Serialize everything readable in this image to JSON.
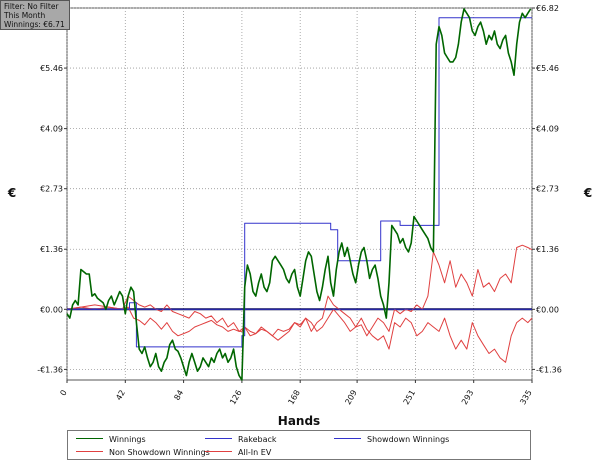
{
  "info": {
    "filter": "Filter: No Filter",
    "period": "This Month",
    "winnings": "Winnings: €6.71"
  },
  "chart_data": {
    "type": "line",
    "xlabel": "Hands",
    "ylabel": "€",
    "xlim": [
      0,
      335
    ],
    "ylim": [
      -1.6,
      6.82
    ],
    "x_ticks": [
      0,
      42,
      84,
      126,
      168,
      209,
      251,
      293,
      335
    ],
    "y_ticks": [
      -1.36,
      0.0,
      1.36,
      2.73,
      4.09,
      5.46,
      6.82
    ],
    "y_tick_labels": [
      "-€1.36",
      "€0.00",
      "€1.36",
      "€2.73",
      "€4.09",
      "€5.46",
      "€6.82"
    ],
    "grid": true,
    "legend_position": "bottom",
    "colors": {
      "winnings": "#006600",
      "rakeback": "#3333cc",
      "showdown": "#3333cc",
      "nonshowdown": "#e04040",
      "allin": "#e04040",
      "zero": "#000033"
    },
    "series": [
      {
        "name": "Winnings",
        "key": "winnings",
        "x": [
          0,
          2,
          4,
          6,
          8,
          10,
          12,
          14,
          16,
          18,
          20,
          22,
          24,
          26,
          28,
          30,
          32,
          34,
          36,
          38,
          40,
          42,
          44,
          46,
          48,
          50,
          52,
          54,
          56,
          58,
          60,
          62,
          64,
          66,
          68,
          70,
          72,
          74,
          76,
          78,
          80,
          82,
          84,
          86,
          88,
          90,
          92,
          94,
          96,
          98,
          100,
          102,
          104,
          106,
          108,
          110,
          112,
          114,
          116,
          118,
          120,
          122,
          124,
          126,
          128,
          130,
          132,
          134,
          136,
          138,
          140,
          142,
          144,
          146,
          148,
          150,
          152,
          154,
          156,
          158,
          160,
          162,
          164,
          166,
          168,
          170,
          172,
          174,
          176,
          178,
          180,
          182,
          184,
          186,
          188,
          190,
          192,
          194,
          196,
          198,
          200,
          202,
          204,
          206,
          208,
          210,
          212,
          214,
          216,
          218,
          220,
          222,
          224,
          226,
          228,
          230,
          232,
          234,
          236,
          238,
          240,
          242,
          244,
          246,
          248,
          250,
          252,
          254,
          256,
          258,
          260,
          262,
          264,
          266,
          268,
          270,
          272,
          274,
          276,
          278,
          280,
          282,
          284,
          286,
          288,
          290,
          292,
          294,
          296,
          298,
          300,
          302,
          304,
          306,
          308,
          310,
          312,
          314,
          316,
          318,
          320,
          322,
          324,
          326,
          328,
          330,
          332,
          334
        ],
        "values": [
          -0.1,
          -0.2,
          0.1,
          0.2,
          0.1,
          0.9,
          0.85,
          0.8,
          0.8,
          0.3,
          0.35,
          0.25,
          0.2,
          0.15,
          0.0,
          0.2,
          0.3,
          0.1,
          0.25,
          0.4,
          0.3,
          -0.1,
          0.3,
          0.5,
          0.4,
          -0.3,
          -0.9,
          -1.0,
          -0.85,
          -1.1,
          -1.3,
          -1.2,
          -1.0,
          -1.3,
          -1.4,
          -1.2,
          -1.1,
          -0.8,
          -0.7,
          -0.9,
          -0.95,
          -1.1,
          -1.3,
          -1.5,
          -1.2,
          -1.0,
          -1.2,
          -1.4,
          -1.3,
          -1.1,
          -1.2,
          -1.3,
          -1.1,
          -1.2,
          -1.0,
          -0.9,
          -1.1,
          -1.0,
          -1.2,
          -1.1,
          -0.9,
          -1.3,
          -1.5,
          -1.6,
          0.5,
          1.0,
          0.8,
          0.4,
          0.3,
          0.6,
          0.8,
          0.5,
          0.4,
          0.6,
          1.1,
          1.2,
          1.1,
          1.0,
          0.9,
          0.7,
          0.6,
          0.8,
          0.9,
          0.5,
          0.3,
          0.7,
          1.1,
          1.3,
          1.2,
          0.8,
          0.4,
          0.2,
          0.5,
          0.9,
          1.2,
          0.6,
          0.3,
          0.9,
          1.3,
          1.5,
          1.2,
          1.4,
          1.1,
          0.8,
          0.6,
          1.0,
          1.3,
          1.4,
          1.1,
          0.7,
          0.9,
          1.0,
          0.7,
          0.3,
          0.1,
          -0.2,
          0.6,
          1.9,
          1.8,
          1.7,
          1.5,
          1.6,
          1.4,
          1.3,
          1.5,
          2.1,
          2.0,
          1.9,
          1.8,
          1.7,
          1.6,
          1.4,
          1.3,
          6.0,
          6.4,
          6.2,
          5.8,
          5.7,
          5.6,
          5.6,
          5.7,
          6.0,
          6.5,
          6.8,
          6.7,
          6.6,
          6.3,
          6.2,
          6.4,
          6.5,
          6.3,
          6.0,
          6.2,
          6.1,
          6.3,
          6.0,
          5.9,
          6.1,
          6.2,
          5.8,
          5.6,
          5.3,
          6.0,
          6.5,
          6.7,
          6.6,
          6.7,
          6.8
        ],
        "values_note": ""
      },
      {
        "name": "Rakeback",
        "key": "rakeback",
        "x": [
          0,
          45,
          45,
          50,
          50,
          126,
          126,
          128,
          128,
          190,
          190,
          195,
          195,
          226,
          226,
          240,
          240,
          252,
          252,
          268,
          268,
          335
        ],
        "values": [
          0.0,
          0.0,
          0.15,
          0.15,
          -0.85,
          -0.85,
          -0.6,
          -0.6,
          1.95,
          1.95,
          1.8,
          1.8,
          1.1,
          1.1,
          2.0,
          2.0,
          1.9,
          1.9,
          1.9,
          1.9,
          6.6,
          6.6
        ]
      },
      {
        "name": "Showdown Winnings",
        "key": "showdown",
        "x": [
          0,
          335
        ],
        "values": [
          0.0,
          0.0
        ]
      },
      {
        "name": "Non Showdown Winnings",
        "key": "nonshowdown",
        "x": [
          0,
          10,
          20,
          30,
          40,
          44,
          48,
          52,
          56,
          60,
          64,
          68,
          72,
          76,
          80,
          84,
          88,
          92,
          96,
          100,
          104,
          108,
          112,
          116,
          120,
          124,
          126,
          128,
          132,
          136,
          140,
          144,
          148,
          152,
          156,
          160,
          164,
          168,
          172,
          176,
          180,
          184,
          188,
          192,
          196,
          200,
          204,
          208,
          212,
          216,
          220,
          224,
          228,
          232,
          236,
          240,
          244,
          248,
          252,
          256,
          260,
          264,
          268,
          272,
          276,
          280,
          284,
          288,
          292,
          296,
          300,
          304,
          308,
          312,
          316,
          320,
          324,
          328,
          332,
          335
        ],
        "values": [
          0.0,
          0.05,
          0.1,
          0.05,
          0.0,
          0.05,
          -0.2,
          -0.25,
          -0.35,
          -0.2,
          -0.3,
          -0.45,
          -0.3,
          -0.5,
          -0.6,
          -0.55,
          -0.5,
          -0.4,
          -0.35,
          -0.3,
          -0.25,
          -0.35,
          -0.4,
          -0.5,
          -0.45,
          -0.5,
          -0.5,
          -0.4,
          -0.5,
          -0.55,
          -0.45,
          -0.5,
          -0.6,
          -0.45,
          -0.5,
          -0.45,
          -0.3,
          -0.4,
          -0.2,
          -0.3,
          -0.5,
          -0.4,
          -0.2,
          0.0,
          -0.15,
          -0.3,
          -0.5,
          -0.4,
          -0.2,
          -0.45,
          -0.6,
          -0.7,
          -0.6,
          -0.9,
          -0.3,
          -0.4,
          -0.2,
          -0.3,
          -0.6,
          -0.5,
          -0.3,
          -0.4,
          -0.5,
          -0.2,
          -0.6,
          -0.9,
          -0.7,
          -0.9,
          -0.3,
          -0.6,
          -0.8,
          -1.0,
          -0.9,
          -1.1,
          -1.2,
          -0.6,
          -0.3,
          -0.2,
          -0.3,
          -0.2
        ]
      },
      {
        "name": "All-In EV",
        "key": "allin",
        "x": [
          0,
          10,
          20,
          30,
          40,
          44,
          48,
          52,
          56,
          60,
          64,
          68,
          72,
          76,
          80,
          84,
          88,
          92,
          96,
          100,
          104,
          108,
          112,
          116,
          120,
          124,
          126,
          128,
          132,
          136,
          140,
          144,
          148,
          152,
          156,
          160,
          164,
          168,
          172,
          176,
          180,
          184,
          188,
          192,
          196,
          200,
          204,
          208,
          212,
          216,
          220,
          224,
          228,
          232,
          236,
          240,
          244,
          248,
          252,
          256,
          260,
          264,
          268,
          272,
          276,
          280,
          284,
          288,
          292,
          296,
          300,
          304,
          308,
          312,
          316,
          320,
          324,
          328,
          332,
          335
        ],
        "values": [
          0.0,
          0.05,
          0.0,
          0.05,
          0.0,
          0.3,
          0.2,
          0.1,
          0.05,
          0.1,
          0.0,
          -0.05,
          0.1,
          -0.05,
          -0.1,
          -0.15,
          -0.2,
          -0.05,
          -0.1,
          -0.2,
          -0.15,
          -0.3,
          -0.2,
          -0.4,
          -0.3,
          -0.5,
          -0.45,
          -0.4,
          -0.6,
          -0.55,
          -0.4,
          -0.5,
          -0.6,
          -0.7,
          -0.6,
          -0.5,
          -0.3,
          -0.35,
          -0.2,
          -0.5,
          -0.3,
          -0.2,
          0.3,
          0.1,
          0.0,
          -0.1,
          -0.2,
          -0.4,
          -0.35,
          -0.6,
          -0.4,
          -0.2,
          -0.3,
          -0.5,
          0.0,
          -0.1,
          0.0,
          -0.05,
          0.1,
          0.0,
          0.3,
          1.3,
          1.0,
          0.6,
          1.1,
          0.5,
          0.8,
          0.6,
          0.3,
          0.9,
          0.5,
          0.6,
          0.4,
          0.7,
          0.8,
          0.6,
          1.4,
          1.45,
          1.4,
          1.35
        ]
      }
    ]
  }
}
